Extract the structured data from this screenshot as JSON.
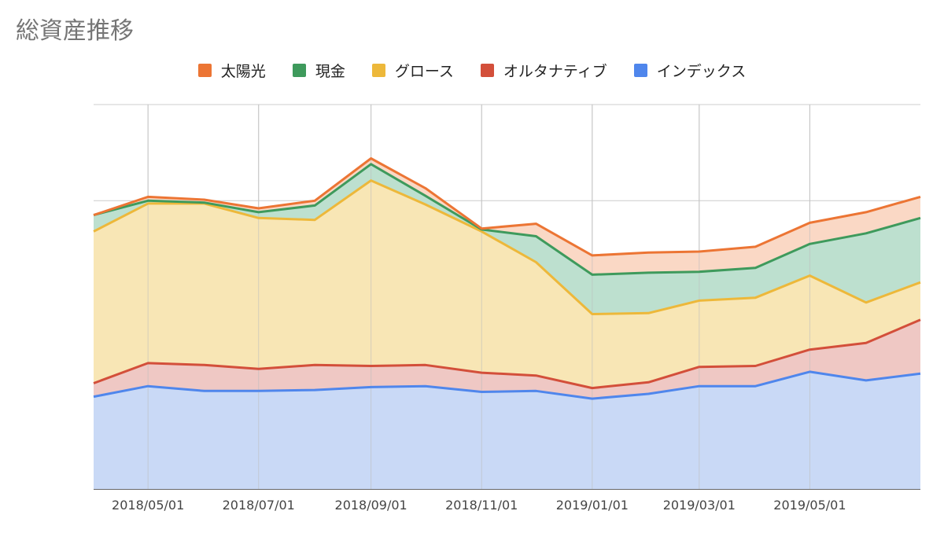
{
  "chart_data": {
    "type": "area",
    "title": "総資産推移",
    "stacked": true,
    "legend_position": "top",
    "grid": true,
    "x_tick_labels": [
      "2018/05/01",
      "2018/07/01",
      "2018/09/01",
      "2018/11/01",
      "2019/01/01",
      "2019/03/01",
      "2019/05/01"
    ],
    "x": [
      "2018/04/01",
      "2018/05/01",
      "2018/06/01",
      "2018/07/01",
      "2018/08/01",
      "2018/09/01",
      "2018/10/01",
      "2018/11/01",
      "2018/12/01",
      "2019/01/01",
      "2019/02/01",
      "2019/03/01",
      "2019/04/01",
      "2019/05/01",
      "2019/06/01",
      "2019/07/01"
    ],
    "ylim": [
      0,
      4
    ],
    "series": [
      {
        "name": "インデックス",
        "color": "#4f86ec",
        "fill": "#c9d9f6",
        "values": [
          0.96,
          1.07,
          1.02,
          1.02,
          1.03,
          1.06,
          1.07,
          1.01,
          1.02,
          0.94,
          0.99,
          1.07,
          1.07,
          1.22,
          1.13,
          1.2
        ]
      },
      {
        "name": "オルタナティブ",
        "color": "#d34f3a",
        "fill": "#efc8c4",
        "values": [
          0.14,
          0.24,
          0.27,
          0.23,
          0.26,
          0.22,
          0.22,
          0.2,
          0.16,
          0.11,
          0.12,
          0.2,
          0.21,
          0.23,
          0.39,
          0.56
        ]
      },
      {
        "name": "グロース",
        "color": "#edb83a",
        "fill": "#f8e6b5",
        "values": [
          1.58,
          1.66,
          1.68,
          1.57,
          1.51,
          1.93,
          1.67,
          1.47,
          1.18,
          0.77,
          0.72,
          0.69,
          0.71,
          0.77,
          0.42,
          0.39
        ]
      },
      {
        "name": "現金",
        "color": "#3e9a5c",
        "fill": "#bde0cf",
        "values": [
          0.17,
          0.03,
          0.01,
          0.06,
          0.15,
          0.17,
          0.09,
          0.02,
          0.27,
          0.41,
          0.42,
          0.3,
          0.31,
          0.33,
          0.72,
          0.67
        ]
      },
      {
        "name": "太陽光",
        "color": "#ec7534",
        "fill": "#fad8c5",
        "values": [
          0.0,
          0.04,
          0.03,
          0.04,
          0.05,
          0.06,
          0.08,
          0.01,
          0.13,
          0.2,
          0.21,
          0.21,
          0.22,
          0.22,
          0.22,
          0.22
        ]
      }
    ]
  }
}
